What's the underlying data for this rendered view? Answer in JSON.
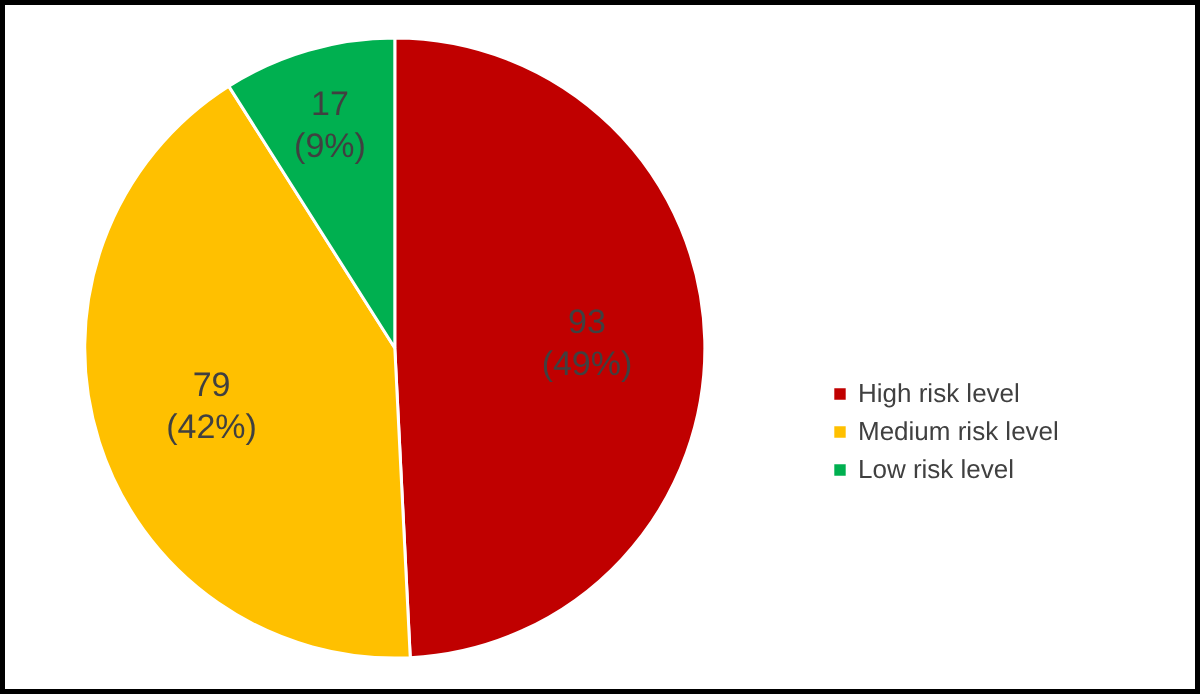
{
  "chart_data": {
    "type": "pie",
    "categories": [
      "High risk level",
      "Medium risk level",
      "Low risk level"
    ],
    "values": [
      93,
      79,
      17
    ],
    "colors": [
      "#c00000",
      "#ffc000",
      "#00b050"
    ],
    "value_labels": [
      "93\n(49%)",
      "79\n(42%)",
      "17\n(9%)"
    ],
    "legend": "right"
  }
}
